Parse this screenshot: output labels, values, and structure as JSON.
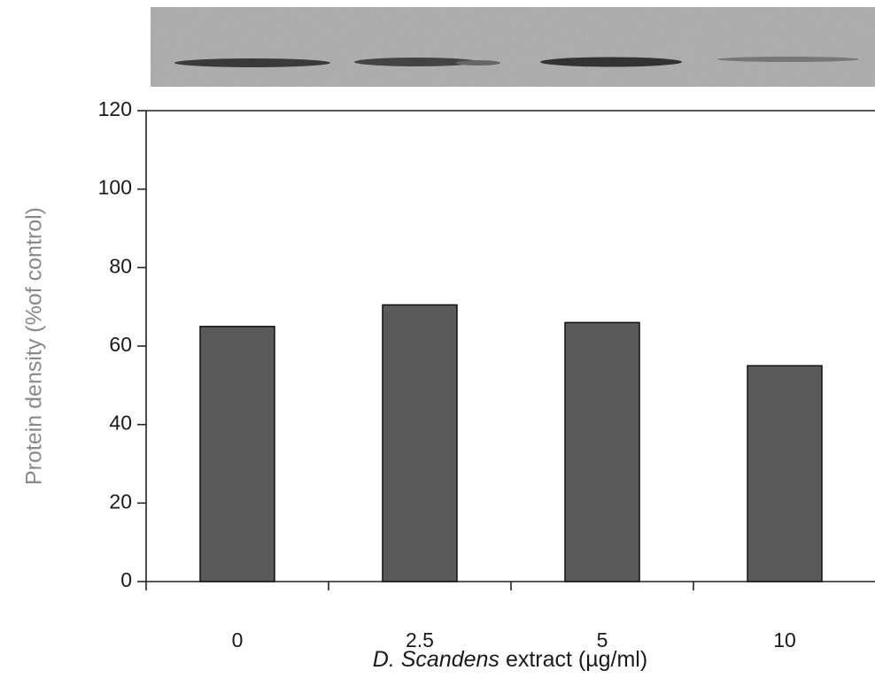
{
  "chart_data": {
    "type": "bar",
    "ylabel": "Protein density (%of control)",
    "xlabel": [
      "D. Scandens",
      "extract (µg/ml)"
    ],
    "categories": [
      "0",
      "2.5",
      "5",
      "10"
    ],
    "values": [
      65,
      70.5,
      66,
      55
    ],
    "color": "#5a5a5a",
    "ylim": [
      0,
      120
    ],
    "yticks": [
      0,
      20,
      40,
      60,
      80,
      100,
      120
    ],
    "grid": false
  }
}
